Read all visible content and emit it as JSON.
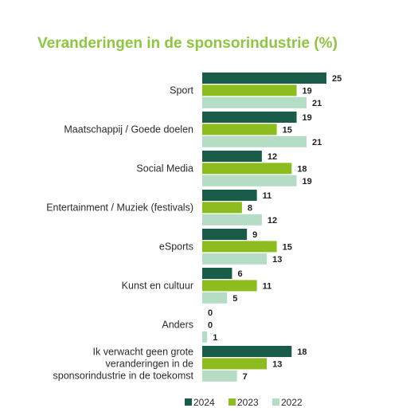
{
  "chart_data": {
    "type": "bar",
    "orientation": "horizontal",
    "title": "Veranderingen in de sponsorindustrie (%)",
    "categories": [
      [
        "Sport"
      ],
      [
        "Maatschappij / Goede doelen"
      ],
      [
        "Social Media"
      ],
      [
        "Entertainment  / Muziek (festivals)"
      ],
      [
        "eSports"
      ],
      [
        "Kunst en cultuur"
      ],
      [
        "Anders"
      ],
      [
        "Ik verwacht geen grote",
        "veranderingen in de",
        "sponsorindustrie in de toekomst"
      ]
    ],
    "series": [
      {
        "name": "2024",
        "color": "#1a5c4a",
        "values": [
          25,
          19,
          12,
          11,
          9,
          6,
          0,
          18
        ]
      },
      {
        "name": "2023",
        "color": "#8cbc1e",
        "values": [
          19,
          15,
          18,
          8,
          15,
          11,
          0,
          13
        ]
      },
      {
        "name": "2022",
        "color": "#b5dcc4",
        "values": [
          21,
          21,
          19,
          12,
          13,
          5,
          1,
          7
        ]
      }
    ],
    "xlim": [
      0,
      25
    ],
    "grid": false,
    "legend_position": "bottom",
    "data_labels": true
  }
}
